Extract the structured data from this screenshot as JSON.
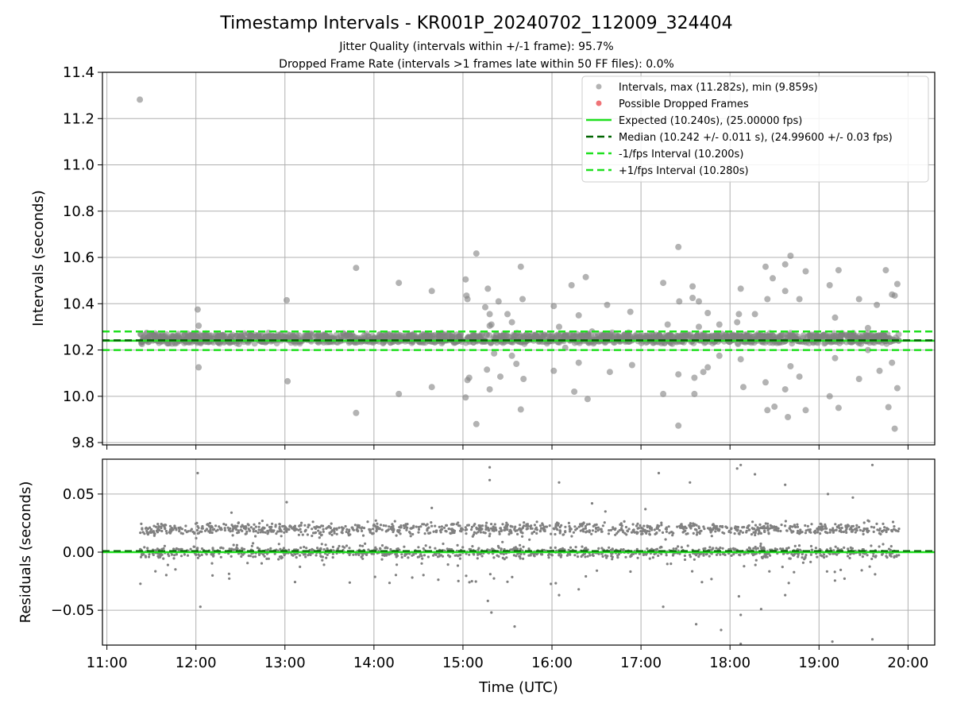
{
  "header": {
    "title": "Timestamp Intervals - KR001P_20240702_112009_324404",
    "subtitle1": "Jitter Quality (intervals within +/-1 frame): 95.7%",
    "subtitle2": "Dropped Frame Rate (intervals >1 frames late within 50 FF files): 0.0%"
  },
  "legend": {
    "intervals": "Intervals, max (11.282s), min (9.859s)",
    "dropped": "Possible Dropped Frames",
    "expected": "Expected (10.240s), (25.00000 fps)",
    "median": "Median (10.242 +/- 0.011 s), (24.99600 +/- 0.03 fps)",
    "minus": "-1/fps Interval (10.200s)",
    "plus": "+1/fps Interval (10.280s)"
  },
  "colors": {
    "points": "#808080",
    "dropped": "#e8383d",
    "expected": "#1fe01f",
    "median": "#006400",
    "band": "#1fe01f",
    "grid": "#b0b0b0"
  },
  "chart_data": [
    {
      "type": "scatter",
      "title": "Timestamp Intervals - KR001P_20240702_112009_324404",
      "xlabel": "",
      "ylabel": "Intervals (seconds)",
      "xlim": [
        10.95,
        20.3
      ],
      "ylim": [
        9.79,
        11.4
      ],
      "x_ticks": [
        "11:00",
        "12:00",
        "13:00",
        "14:00",
        "15:00",
        "16:00",
        "17:00",
        "18:00",
        "19:00",
        "20:00"
      ],
      "y_ticks": [
        "9.8",
        "10.0",
        "10.2",
        "10.4",
        "10.6",
        "10.8",
        "11.0",
        "11.2",
        "11.4"
      ],
      "y_tick_values": [
        9.8,
        10.0,
        10.2,
        10.4,
        10.6,
        10.8,
        11.0,
        11.2,
        11.4
      ],
      "grid": true,
      "legend_position": "top-right",
      "time_range_hours": [
        11.37,
        19.9
      ],
      "reference_lines": {
        "expected": 10.24,
        "median": 10.242,
        "minus_one_frame": 10.2,
        "plus_one_frame": 10.28
      },
      "outliers": [
        [
          11.37,
          11.282
        ],
        [
          12.02,
          10.375
        ],
        [
          12.03,
          10.305
        ],
        [
          12.03,
          10.125
        ],
        [
          13.02,
          10.415
        ],
        [
          13.03,
          10.065
        ],
        [
          13.8,
          10.555
        ],
        [
          13.8,
          9.928
        ],
        [
          14.28,
          10.49
        ],
        [
          14.28,
          10.01
        ],
        [
          14.65,
          10.455
        ],
        [
          14.65,
          10.04
        ],
        [
          15.03,
          10.505
        ],
        [
          15.04,
          10.435
        ],
        [
          15.05,
          10.42
        ],
        [
          15.05,
          10.07
        ],
        [
          15.07,
          10.08
        ],
        [
          15.03,
          9.995
        ],
        [
          15.15,
          10.617
        ],
        [
          15.15,
          9.88
        ],
        [
          15.25,
          10.385
        ],
        [
          15.28,
          10.465
        ],
        [
          15.3,
          10.355
        ],
        [
          15.3,
          10.305
        ],
        [
          15.32,
          10.31
        ],
        [
          15.27,
          10.115
        ],
        [
          15.35,
          10.185
        ],
        [
          15.4,
          10.41
        ],
        [
          15.42,
          10.085
        ],
        [
          15.3,
          10.03
        ],
        [
          15.5,
          10.355
        ],
        [
          15.55,
          10.32
        ],
        [
          15.55,
          10.175
        ],
        [
          15.6,
          10.14
        ],
        [
          15.65,
          10.56
        ],
        [
          15.67,
          10.42
        ],
        [
          15.68,
          10.075
        ],
        [
          15.65,
          9.943
        ],
        [
          16.02,
          10.39
        ],
        [
          16.02,
          10.11
        ],
        [
          16.08,
          10.3
        ],
        [
          16.15,
          10.21
        ],
        [
          16.22,
          10.48
        ],
        [
          16.25,
          10.02
        ],
        [
          16.3,
          10.35
        ],
        [
          16.3,
          10.145
        ],
        [
          16.38,
          10.515
        ],
        [
          16.4,
          9.988
        ],
        [
          16.45,
          10.28
        ],
        [
          16.62,
          10.395
        ],
        [
          16.65,
          10.105
        ],
        [
          16.88,
          10.365
        ],
        [
          16.9,
          10.135
        ],
        [
          17.25,
          10.49
        ],
        [
          17.25,
          10.01
        ],
        [
          17.3,
          10.31
        ],
        [
          17.42,
          10.645
        ],
        [
          17.42,
          9.873
        ],
        [
          17.43,
          10.41
        ],
        [
          17.42,
          10.095
        ],
        [
          17.58,
          10.475
        ],
        [
          17.58,
          10.425
        ],
        [
          17.6,
          10.08
        ],
        [
          17.6,
          10.01
        ],
        [
          17.65,
          10.41
        ],
        [
          17.65,
          10.3
        ],
        [
          17.7,
          10.105
        ],
        [
          17.75,
          10.36
        ],
        [
          17.75,
          10.125
        ],
        [
          17.88,
          10.31
        ],
        [
          17.88,
          10.175
        ],
        [
          18.08,
          10.32
        ],
        [
          18.1,
          10.355
        ],
        [
          18.12,
          10.465
        ],
        [
          18.12,
          10.16
        ],
        [
          18.15,
          10.04
        ],
        [
          18.28,
          10.355
        ],
        [
          18.4,
          10.56
        ],
        [
          18.42,
          10.42
        ],
        [
          18.4,
          10.06
        ],
        [
          18.42,
          9.94
        ],
        [
          18.48,
          10.51
        ],
        [
          18.5,
          9.955
        ],
        [
          18.62,
          10.57
        ],
        [
          18.62,
          10.455
        ],
        [
          18.62,
          10.03
        ],
        [
          18.65,
          9.91
        ],
        [
          18.68,
          10.607
        ],
        [
          18.68,
          10.13
        ],
        [
          18.78,
          10.42
        ],
        [
          18.78,
          10.085
        ],
        [
          18.85,
          10.54
        ],
        [
          18.85,
          9.94
        ],
        [
          19.12,
          10.48
        ],
        [
          19.12,
          10.0
        ],
        [
          19.18,
          10.34
        ],
        [
          19.18,
          10.165
        ],
        [
          19.22,
          10.545
        ],
        [
          19.22,
          9.95
        ],
        [
          19.45,
          10.42
        ],
        [
          19.45,
          10.075
        ],
        [
          19.55,
          10.295
        ],
        [
          19.55,
          10.2
        ],
        [
          19.65,
          10.395
        ],
        [
          19.68,
          10.11
        ],
        [
          19.75,
          10.545
        ],
        [
          19.78,
          9.953
        ],
        [
          19.82,
          10.44
        ],
        [
          19.82,
          10.145
        ],
        [
          19.85,
          10.435
        ],
        [
          19.85,
          9.86
        ],
        [
          19.88,
          10.485
        ],
        [
          19.88,
          10.035
        ]
      ]
    },
    {
      "type": "scatter",
      "title": "",
      "xlabel": "Time (UTC)",
      "ylabel": "Residuals (seconds)",
      "xlim": [
        10.95,
        20.3
      ],
      "ylim": [
        -0.08,
        0.08
      ],
      "x_ticks": [
        "11:00",
        "12:00",
        "13:00",
        "14:00",
        "15:00",
        "16:00",
        "17:00",
        "18:00",
        "19:00",
        "20:00"
      ],
      "y_ticks": [
        "0.05",
        "0.00",
        "−0.05"
      ],
      "y_tick_values": [
        0.05,
        0.0,
        -0.05
      ],
      "grid": true,
      "time_range_hours": [
        11.37,
        19.9
      ],
      "clusters": {
        "upper": 0.02,
        "lower": 0.0
      },
      "reference_lines": {
        "expected": 0.0,
        "median": 0.001
      },
      "outliers": [
        [
          12.02,
          0.068
        ],
        [
          12.05,
          -0.047
        ],
        [
          15.3,
          0.073
        ],
        [
          15.3,
          0.062
        ],
        [
          15.28,
          -0.042
        ],
        [
          15.32,
          -0.052
        ],
        [
          15.58,
          -0.064
        ],
        [
          16.08,
          0.06
        ],
        [
          16.08,
          -0.037
        ],
        [
          16.3,
          -0.032
        ],
        [
          16.45,
          0.042
        ],
        [
          17.2,
          0.068
        ],
        [
          17.25,
          -0.047
        ],
        [
          17.55,
          0.06
        ],
        [
          17.62,
          -0.062
        ],
        [
          17.9,
          -0.067
        ],
        [
          18.08,
          0.072
        ],
        [
          18.12,
          0.075
        ],
        [
          18.1,
          -0.038
        ],
        [
          18.12,
          -0.054
        ],
        [
          18.12,
          -0.079
        ],
        [
          18.28,
          0.067
        ],
        [
          18.35,
          -0.049
        ],
        [
          18.62,
          0.058
        ],
        [
          18.62,
          -0.037
        ],
        [
          19.15,
          -0.077
        ],
        [
          19.6,
          0.075
        ],
        [
          19.6,
          -0.075
        ],
        [
          19.1,
          0.05
        ],
        [
          19.38,
          0.047
        ],
        [
          17.05,
          0.037
        ],
        [
          16.6,
          0.035
        ],
        [
          13.02,
          0.043
        ],
        [
          12.4,
          0.034
        ],
        [
          14.65,
          0.038
        ],
        [
          15.1,
          -0.025
        ]
      ]
    }
  ]
}
